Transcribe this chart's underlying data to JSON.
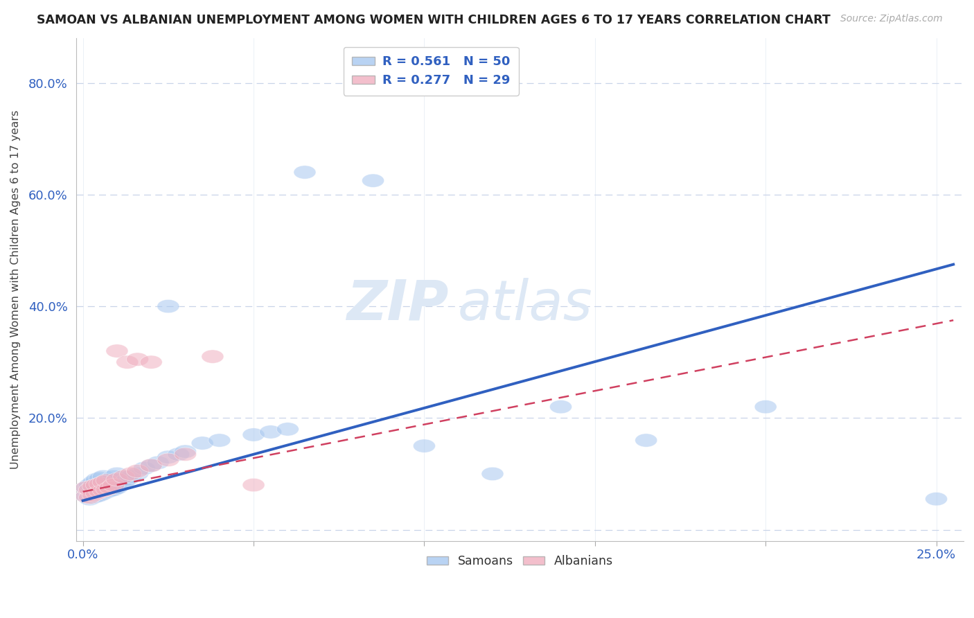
{
  "title": "SAMOAN VS ALBANIAN UNEMPLOYMENT AMONG WOMEN WITH CHILDREN AGES 6 TO 17 YEARS CORRELATION CHART",
  "source": "Source: ZipAtlas.com",
  "ylabel": "Unemployment Among Women with Children Ages 6 to 17 years",
  "xlim": [
    -0.002,
    0.258
  ],
  "ylim": [
    -0.02,
    0.88
  ],
  "ytick_vals": [
    0.0,
    0.2,
    0.4,
    0.6,
    0.8
  ],
  "ytick_labels": [
    "",
    "20.0%",
    "40.0%",
    "60.0%",
    "80.0%"
  ],
  "xtick_vals": [
    0.0,
    0.05,
    0.1,
    0.15,
    0.2,
    0.25
  ],
  "xtick_labels": [
    "0.0%",
    "",
    "",
    "",
    "",
    "25.0%"
  ],
  "samoans_R": 0.561,
  "samoans_N": 50,
  "albanians_R": 0.277,
  "albanians_N": 29,
  "samoan_color": "#a8c8f0",
  "albanian_color": "#f0b0c0",
  "samoan_line_color": "#3060c0",
  "albanian_line_color": "#d04060",
  "samoan_line_x0": 0.0,
  "samoan_line_y0": 0.052,
  "samoan_line_x1": 0.255,
  "samoan_line_y1": 0.475,
  "albanian_line_x0": 0.0,
  "albanian_line_y0": 0.068,
  "albanian_line_x1": 0.255,
  "albanian_line_y1": 0.375,
  "watermark_zip": "ZIP",
  "watermark_atlas": "atlas",
  "background_color": "#ffffff",
  "grid_color": "#c8d4e8",
  "samoans_x": [
    0.001,
    0.001,
    0.002,
    0.002,
    0.002,
    0.003,
    0.003,
    0.003,
    0.004,
    0.004,
    0.004,
    0.005,
    0.005,
    0.005,
    0.006,
    0.006,
    0.006,
    0.007,
    0.007,
    0.008,
    0.008,
    0.009,
    0.009,
    0.01,
    0.01,
    0.011,
    0.012,
    0.013,
    0.014,
    0.016,
    0.018,
    0.02,
    0.022,
    0.025,
    0.028,
    0.03,
    0.035,
    0.04,
    0.05,
    0.055,
    0.06,
    0.025,
    0.065,
    0.085,
    0.1,
    0.12,
    0.14,
    0.165,
    0.2,
    0.25
  ],
  "samoans_y": [
    0.06,
    0.075,
    0.055,
    0.07,
    0.08,
    0.058,
    0.072,
    0.085,
    0.06,
    0.078,
    0.09,
    0.062,
    0.075,
    0.092,
    0.065,
    0.08,
    0.095,
    0.068,
    0.085,
    0.07,
    0.09,
    0.072,
    0.095,
    0.075,
    0.1,
    0.08,
    0.085,
    0.09,
    0.095,
    0.1,
    0.11,
    0.115,
    0.12,
    0.13,
    0.135,
    0.14,
    0.155,
    0.16,
    0.17,
    0.175,
    0.18,
    0.4,
    0.64,
    0.625,
    0.15,
    0.1,
    0.22,
    0.16,
    0.22,
    0.055
  ],
  "albanians_x": [
    0.001,
    0.001,
    0.002,
    0.002,
    0.003,
    0.003,
    0.004,
    0.004,
    0.005,
    0.005,
    0.006,
    0.006,
    0.007,
    0.007,
    0.008,
    0.009,
    0.01,
    0.012,
    0.014,
    0.016,
    0.02,
    0.025,
    0.03,
    0.038,
    0.01,
    0.013,
    0.016,
    0.02,
    0.05
  ],
  "albanians_y": [
    0.06,
    0.075,
    0.058,
    0.072,
    0.062,
    0.078,
    0.065,
    0.08,
    0.068,
    0.082,
    0.07,
    0.085,
    0.072,
    0.088,
    0.075,
    0.08,
    0.09,
    0.095,
    0.1,
    0.105,
    0.115,
    0.125,
    0.135,
    0.31,
    0.32,
    0.3,
    0.305,
    0.3,
    0.08
  ]
}
